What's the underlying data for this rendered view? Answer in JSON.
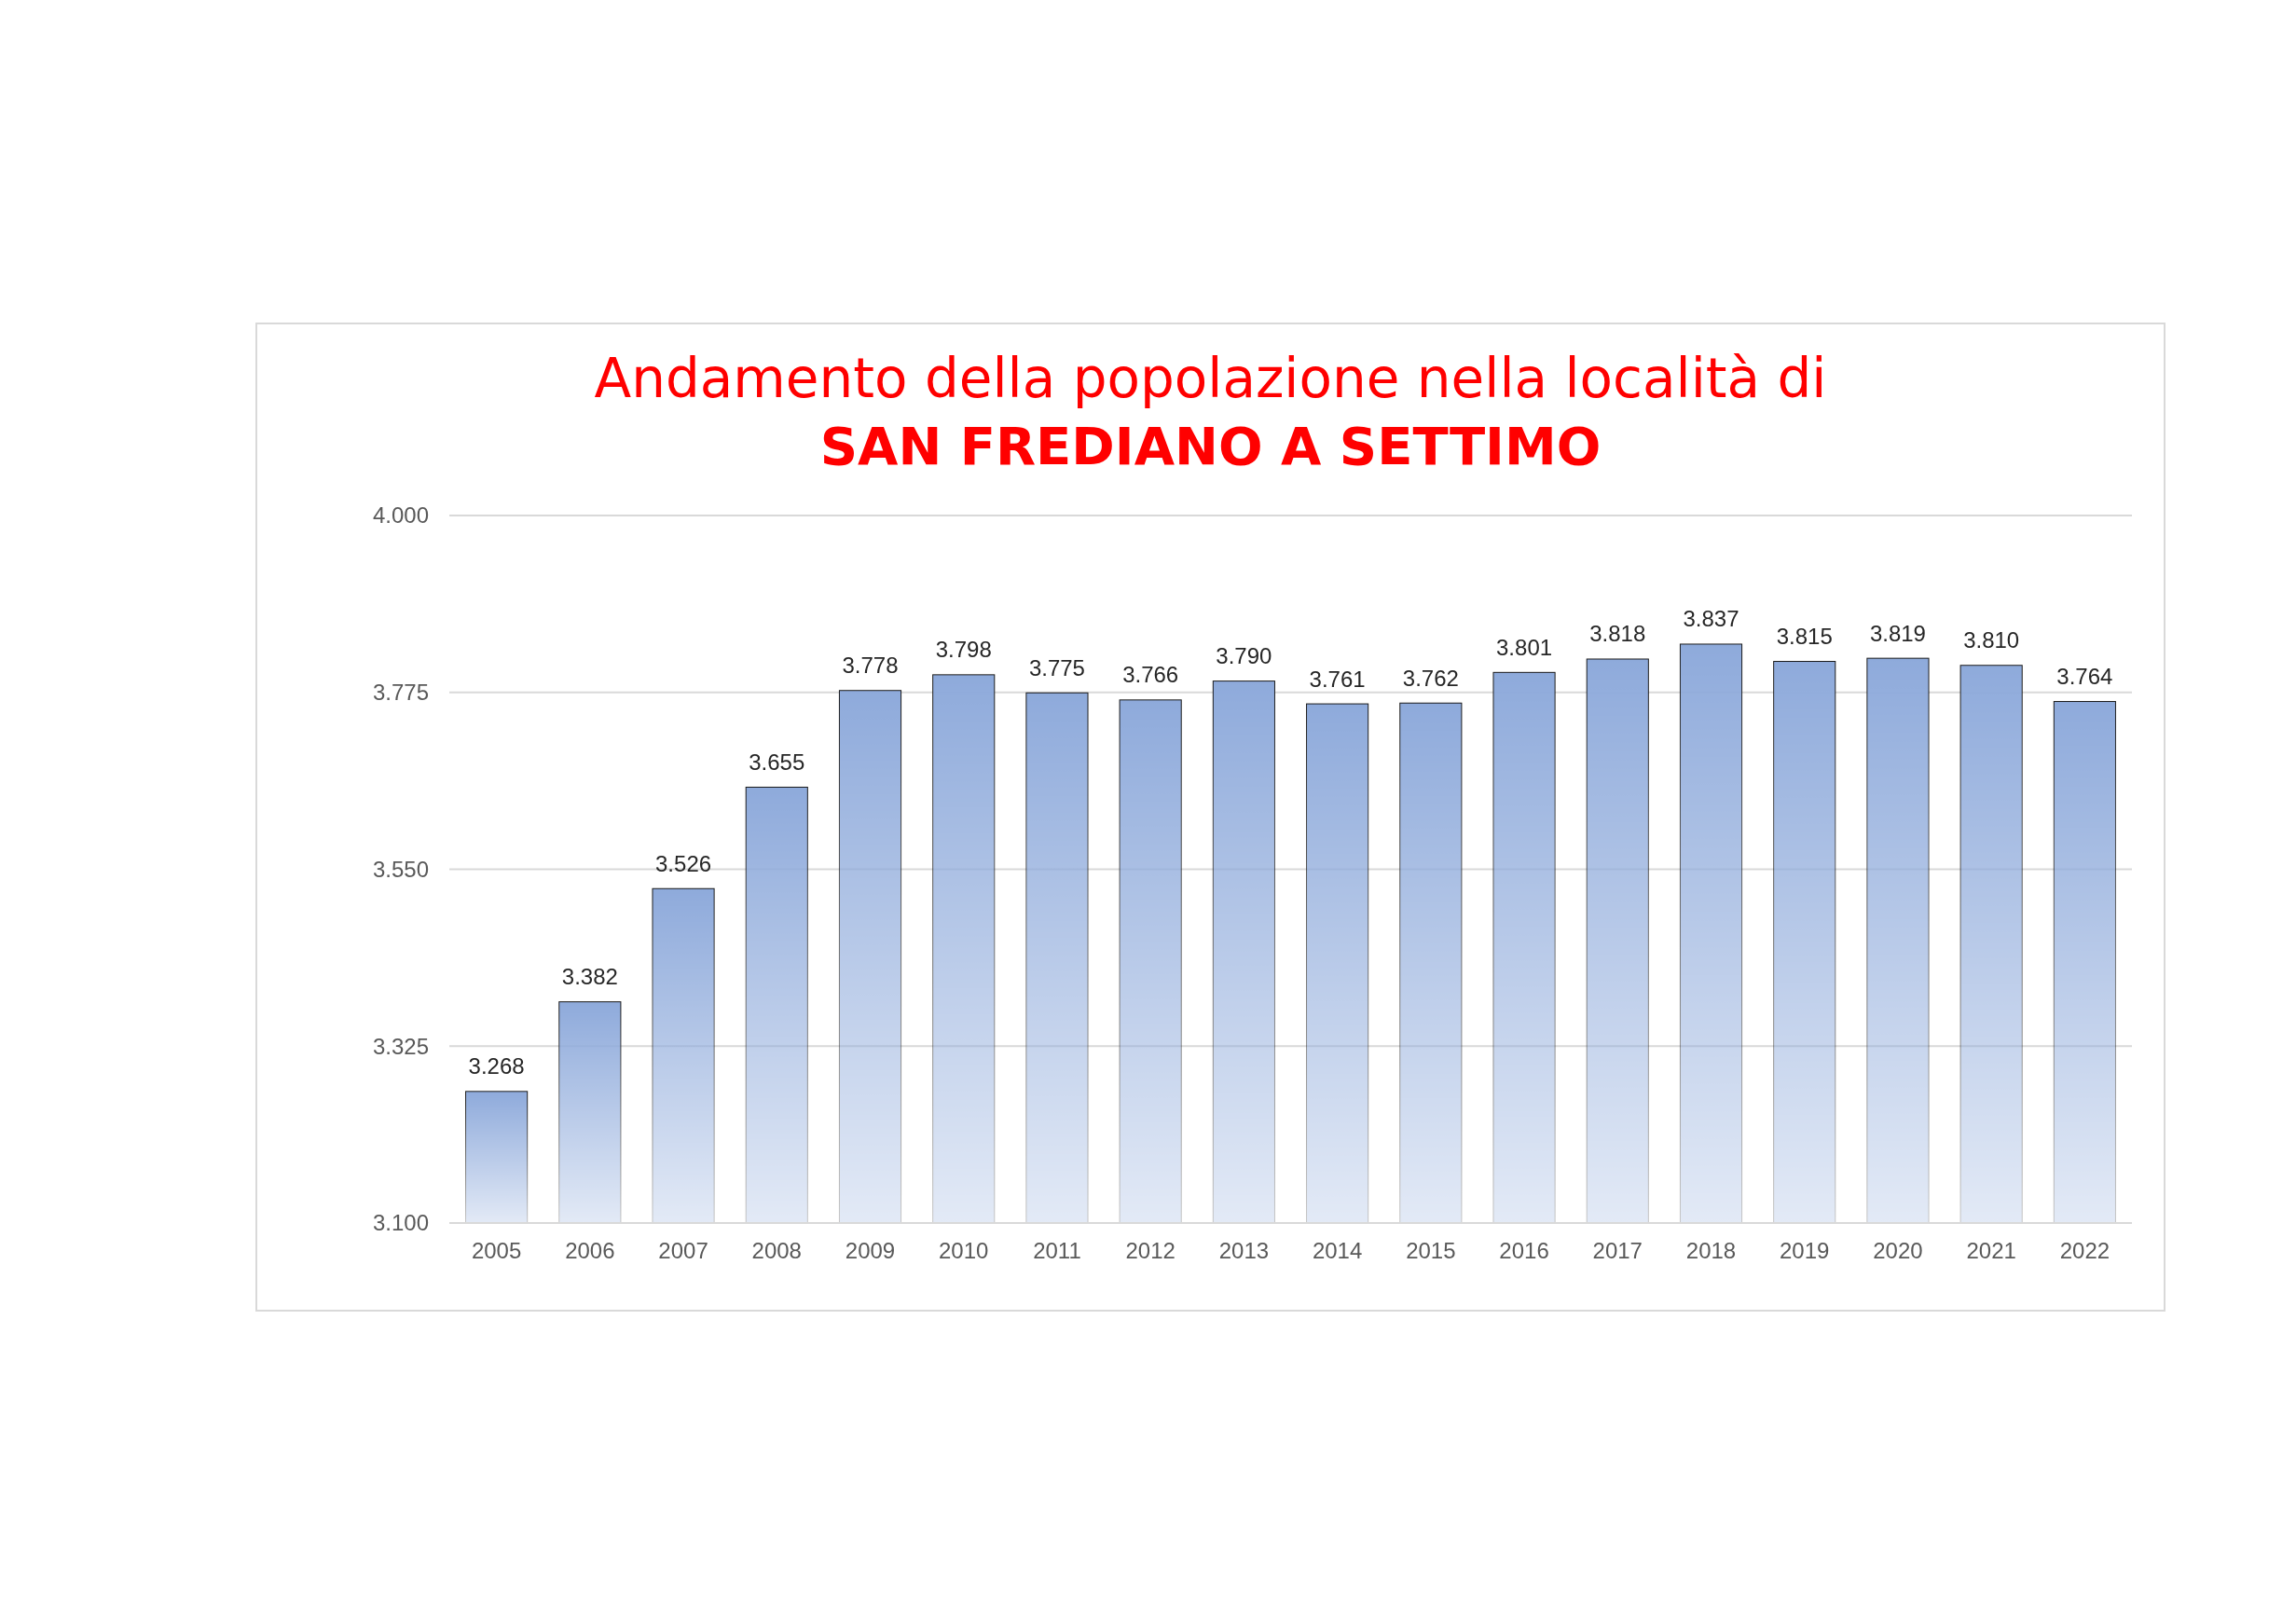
{
  "chart_data": {
    "type": "bar",
    "title": "Andamento della popolazione nella località di",
    "subtitle": "SAN FREDIANO A SETTIMO",
    "categories": [
      "2005",
      "2006",
      "2007",
      "2008",
      "2009",
      "2010",
      "2011",
      "2012",
      "2013",
      "2014",
      "2015",
      "2016",
      "2017",
      "2018",
      "2019",
      "2020",
      "2021",
      "2022"
    ],
    "values": [
      3268,
      3382,
      3526,
      3655,
      3778,
      3798,
      3775,
      3766,
      3790,
      3761,
      3762,
      3801,
      3818,
      3837,
      3815,
      3819,
      3810,
      3764
    ],
    "value_labels": [
      "3.268",
      "3.382",
      "3.526",
      "3.655",
      "3.778",
      "3.798",
      "3.775",
      "3.766",
      "3.790",
      "3.761",
      "3.762",
      "3.801",
      "3.818",
      "3.837",
      "3.815",
      "3.819",
      "3.810",
      "3.764"
    ],
    "color": "#8eaadb",
    "ylim": [
      3100,
      4000
    ],
    "yticks": [
      {
        "value": 3100,
        "label": "3.100"
      },
      {
        "value": 3325,
        "label": "3.325"
      },
      {
        "value": 3550,
        "label": "3.550"
      },
      {
        "value": 3775,
        "label": "3.775"
      },
      {
        "value": 4000,
        "label": "4.000"
      }
    ],
    "grid": "y"
  }
}
